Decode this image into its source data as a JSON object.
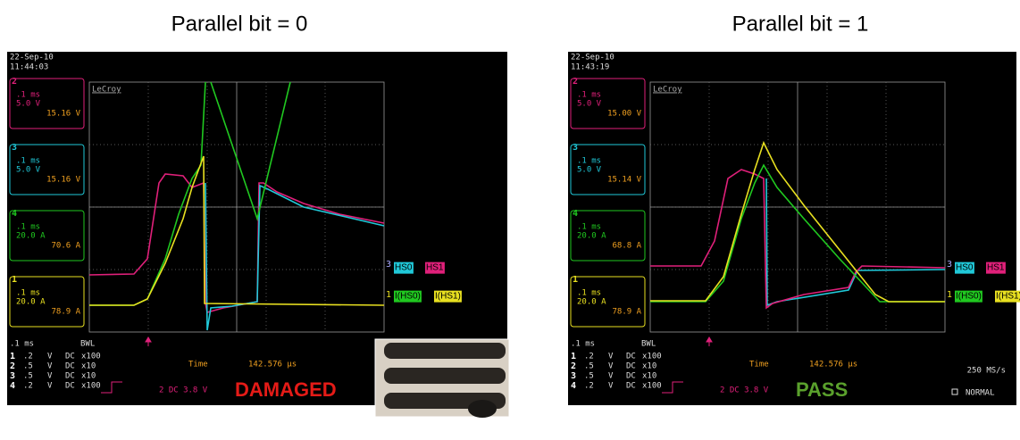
{
  "panels": [
    {
      "title": "Parallel bit = 0",
      "date": "22-Sep-10",
      "time": "11:44:03",
      "brand": "LeCroy",
      "channels": [
        {
          "number": "2",
          "timebase": ".1 ms",
          "scale": "5.0 V",
          "level": "15.16 V"
        },
        {
          "number": "3",
          "timebase": ".1 ms",
          "scale": "5.0 V",
          "level": "15.16 V"
        },
        {
          "number": "4",
          "timebase": ".1 ms",
          "scale": "20.0 A",
          "level": "70.6 A"
        },
        {
          "number": "1",
          "timebase": ".1 ms",
          "scale": "20.0 A",
          "level": "78.9 A"
        }
      ],
      "legend": [
        "HS0",
        "HS1",
        "I(HS0)",
        "I(HS1)"
      ],
      "markers": [
        "3",
        "1"
      ],
      "footer": {
        "timebase": ".1 ms",
        "filter": "BWL",
        "rows": [
          {
            "channel": "1",
            "scale": ".2",
            "unit": "V",
            "coupling": "DC",
            "probe": "x100"
          },
          {
            "channel": "2",
            "scale": ".5",
            "unit": "V",
            "coupling": "DC",
            "probe": "x10"
          },
          {
            "channel": "3",
            "scale": ".5",
            "unit": "V",
            "coupling": "DC",
            "probe": "x10"
          },
          {
            "channel": "4",
            "scale": ".2",
            "unit": "V",
            "coupling": "DC",
            "probe": "x100"
          }
        ],
        "time_label": "Time",
        "time_value": "142.576 µs",
        "trigger": "2 DC 3.8 V"
      },
      "verdict": "DAMAGED"
    },
    {
      "title": "Parallel bit = 1",
      "date": "22-Sep-10",
      "time": "11:43:19",
      "brand": "LeCroy",
      "channels": [
        {
          "number": "2",
          "timebase": ".1 ms",
          "scale": "5.0 V",
          "level": "15.00 V"
        },
        {
          "number": "3",
          "timebase": ".1 ms",
          "scale": "5.0 V",
          "level": "15.14 V"
        },
        {
          "number": "4",
          "timebase": ".1 ms",
          "scale": "20.0 A",
          "level": "68.8 A"
        },
        {
          "number": "1",
          "timebase": ".1 ms",
          "scale": "20.0 A",
          "level": "78.9 A"
        }
      ],
      "legend": [
        "HS0",
        "HS1",
        "I(HS0)",
        "I(HS1)"
      ],
      "markers": [
        "3",
        "1"
      ],
      "footer": {
        "timebase": ".1 ms",
        "filter": "BWL",
        "rows": [
          {
            "channel": "1",
            "scale": ".2",
            "unit": "V",
            "coupling": "DC",
            "probe": "x100"
          },
          {
            "channel": "2",
            "scale": ".5",
            "unit": "V",
            "coupling": "DC",
            "probe": "x10"
          },
          {
            "channel": "3",
            "scale": ".5",
            "unit": "V",
            "coupling": "DC",
            "probe": "x10"
          },
          {
            "channel": "4",
            "scale": ".2",
            "unit": "V",
            "coupling": "DC",
            "probe": "x100"
          }
        ],
        "time_label": "Time",
        "time_value": "142.576 µs",
        "trigger": "2 DC 3.8 V"
      },
      "verdict": "PASS",
      "sample_rate": "250 MS/s",
      "mode": "NORMAL"
    }
  ]
}
